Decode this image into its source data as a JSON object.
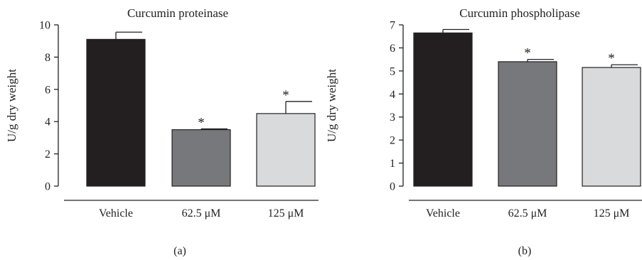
{
  "chart_data": [
    {
      "type": "bar",
      "panel_label": "(a)",
      "title": "Curcumin proteinase",
      "ylabel": "U/g dry weight",
      "xlabel": "",
      "ylim": [
        0,
        10
      ],
      "yticks": [
        "0",
        "2",
        "4",
        "6",
        "8",
        "10"
      ],
      "categories": [
        "Vehicle",
        "62.5 μM",
        "125 μM"
      ],
      "values": [
        9.1,
        3.5,
        4.5
      ],
      "errors": [
        0.45,
        0.05,
        0.75
      ],
      "significance": [
        "",
        "*",
        "*"
      ],
      "colors": [
        "#231f20",
        "#77787b",
        "#d9dadb"
      ],
      "grid": false,
      "legend": "none"
    },
    {
      "type": "bar",
      "panel_label": "(b)",
      "title": "Curcumin phospholipase",
      "ylabel": "U/g dry weight",
      "xlabel": "",
      "ylim": [
        0,
        7
      ],
      "yticks": [
        "0",
        "1",
        "2",
        "3",
        "4",
        "5",
        "6",
        "7"
      ],
      "categories": [
        "Vehicle",
        "62.5 μM",
        "125 μM"
      ],
      "values": [
        6.65,
        5.4,
        5.15
      ],
      "errors": [
        0.15,
        0.1,
        0.12
      ],
      "significance": [
        "",
        "*",
        "*"
      ],
      "colors": [
        "#231f20",
        "#77787b",
        "#d9dadb"
      ],
      "grid": false,
      "legend": "none"
    }
  ]
}
